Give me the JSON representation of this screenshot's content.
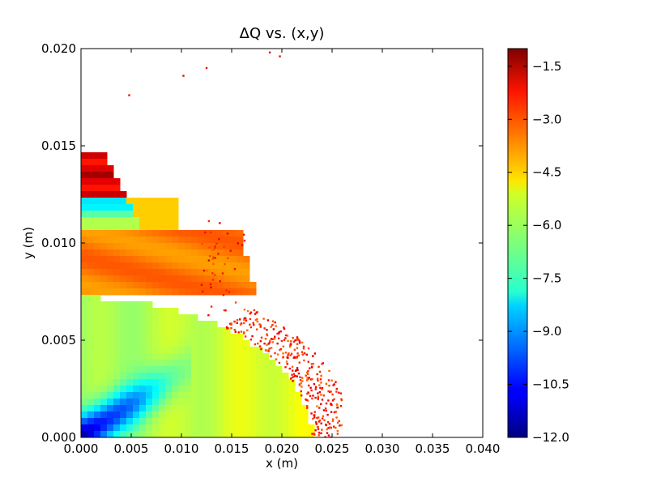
{
  "chart_data": {
    "type": "heatmap",
    "title": "ΔQ vs. (x,y)",
    "xlabel": "x (m)",
    "ylabel": "y (m)",
    "xlim": [
      0.0,
      0.04
    ],
    "ylim": [
      0.0,
      0.02
    ],
    "x_ticks": [
      "0.000",
      "0.005",
      "0.010",
      "0.015",
      "0.020",
      "0.025",
      "0.030",
      "0.035",
      "0.040"
    ],
    "y_ticks": [
      "0.000",
      "0.005",
      "0.010",
      "0.015",
      "0.020"
    ],
    "colorbar": {
      "colormap": "jet",
      "range": [
        -12.0,
        -1.0
      ],
      "ticks": [
        "−1.5",
        "−3.0",
        "−4.5",
        "−6.0",
        "−7.5",
        "−9.0",
        "−10.5",
        "−12.0"
      ]
    },
    "grid": false,
    "regions": [
      {
        "desc": "Core stable region",
        "x": [
          0.0,
          0.023
        ],
        "y": [
          0.0,
          0.007
        ],
        "approx_value": -5.5
      },
      {
        "desc": "Diagonal minimum streak near origin",
        "x": [
          0.0,
          0.009
        ],
        "y": [
          0.0,
          0.003
        ],
        "approx_value": -11.5
      },
      {
        "desc": "Middle band",
        "x": [
          0.0,
          0.017
        ],
        "y": [
          0.007,
          0.0105
        ],
        "approx_value": -3.7
      },
      {
        "desc": "Cyan lobe",
        "x": [
          0.0,
          0.006
        ],
        "y": [
          0.011,
          0.0125
        ],
        "approx_value": -7.0
      },
      {
        "desc": "Upper red band",
        "x": [
          0.0,
          0.004
        ],
        "y": [
          0.0125,
          0.0145
        ],
        "approx_value": -2.0
      },
      {
        "desc": "Scattered boundary points",
        "x": [
          0.012,
          0.026
        ],
        "y": [
          0.0,
          0.0125
        ],
        "approx_value": -2.0
      }
    ],
    "isolated_points": [
      {
        "x": 0.0048,
        "y": 0.0176
      },
      {
        "x": 0.0102,
        "y": 0.0186
      },
      {
        "x": 0.0125,
        "y": 0.019
      },
      {
        "x": 0.0188,
        "y": 0.0198
      },
      {
        "x": 0.0198,
        "y": 0.0196
      }
    ]
  }
}
